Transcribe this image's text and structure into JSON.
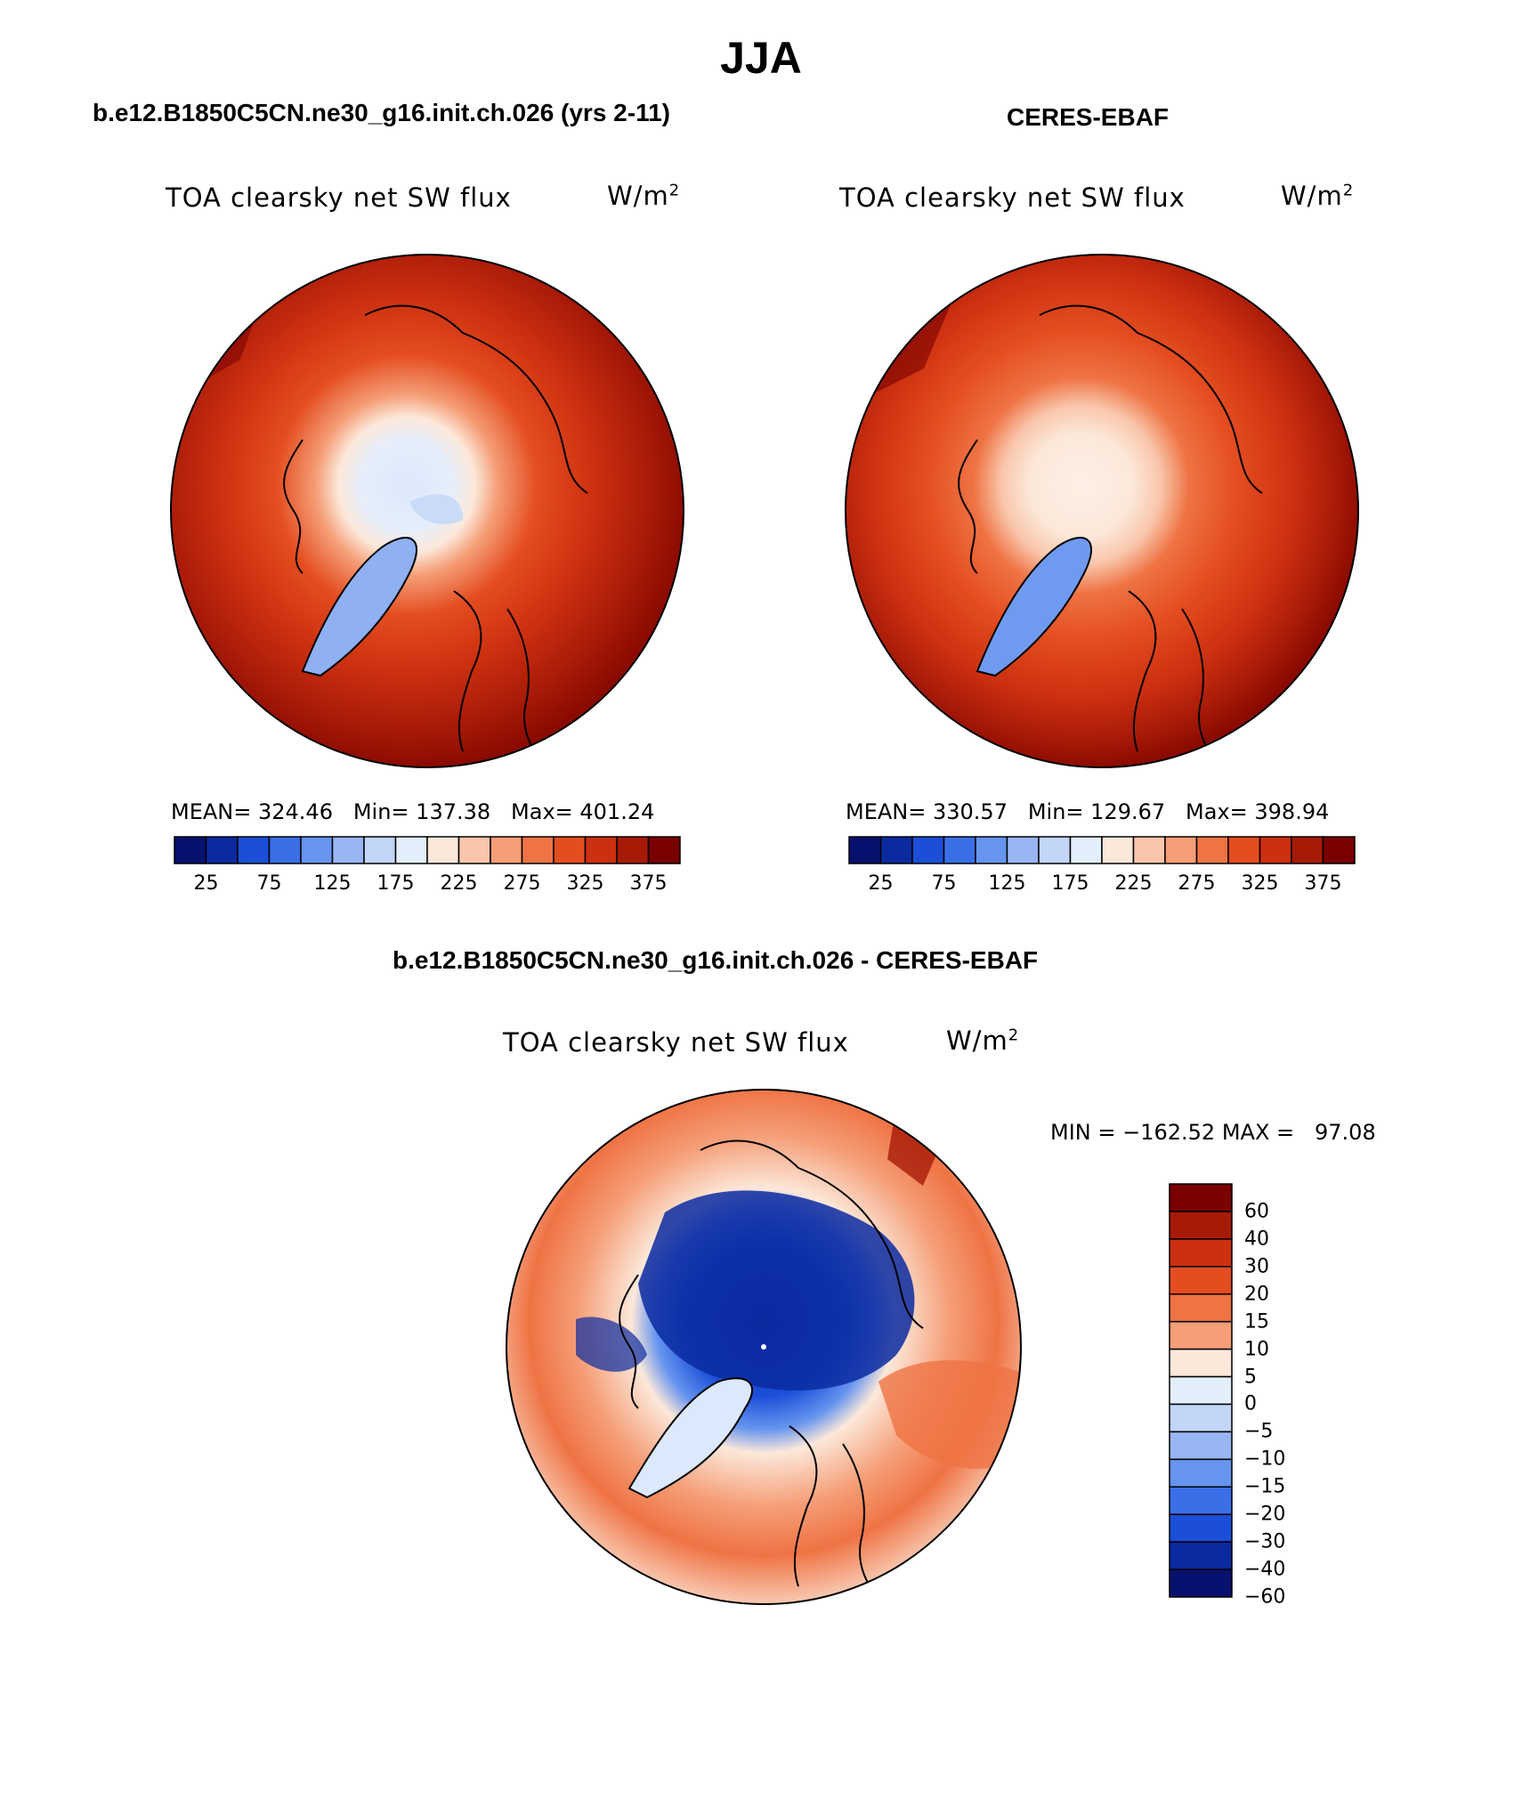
{
  "page_title": "JJA",
  "panels": [
    {
      "case_title": "b.e12.B1850C5CN.ne30_g16.init.ch.026 (yrs 2-11)",
      "plot_title": "TOA clearsky net SW flux",
      "units_base": "W/m",
      "units_sup": "2",
      "stats": "MEAN= 324.46   Min= 137.38   Max= 401.24"
    },
    {
      "case_title": "CERES-EBAF",
      "plot_title": "TOA clearsky net SW flux",
      "units_base": "W/m",
      "units_sup": "2",
      "stats": "MEAN= 330.57   Min= 129.67   Max= 398.94"
    }
  ],
  "diff_panel": {
    "case_title": "b.e12.B1850C5CN.ne30_g16.init.ch.026 - CERES-EBAF",
    "plot_title": "TOA clearsky net SW flux",
    "units_base": "W/m",
    "units_sup": "2",
    "minmax": "MIN = −162.52 MAX =   97.08"
  },
  "abs_colorbar": {
    "colors": [
      "#08106e",
      "#0a2aa0",
      "#1c4fd8",
      "#3a6fe8",
      "#6694ef",
      "#98b6f4",
      "#c3d6f8",
      "#e3eefb",
      "#fce8da",
      "#f9c6ab",
      "#f59e77",
      "#ef7344",
      "#e44d20",
      "#cc3010",
      "#a81a08",
      "#7a0000"
    ],
    "tick_labels": [
      "25",
      "75",
      "125",
      "175",
      "225",
      "275",
      "325",
      "375"
    ]
  },
  "diff_colorbar": {
    "colors": [
      "#7a0000",
      "#a81a08",
      "#cc3010",
      "#e44d20",
      "#ef7344",
      "#f59e77",
      "#fce8da",
      "#e3eefb",
      "#c3d6f8",
      "#98b6f4",
      "#6694ef",
      "#3a6fe8",
      "#1c4fd8",
      "#0a2aa0",
      "#08106e"
    ],
    "tick_labels": [
      "60",
      "40",
      "30",
      "20",
      "15",
      "10",
      "5",
      "0",
      "−5",
      "−10",
      "−15",
      "−20",
      "−30",
      "−40",
      "−60"
    ]
  }
}
